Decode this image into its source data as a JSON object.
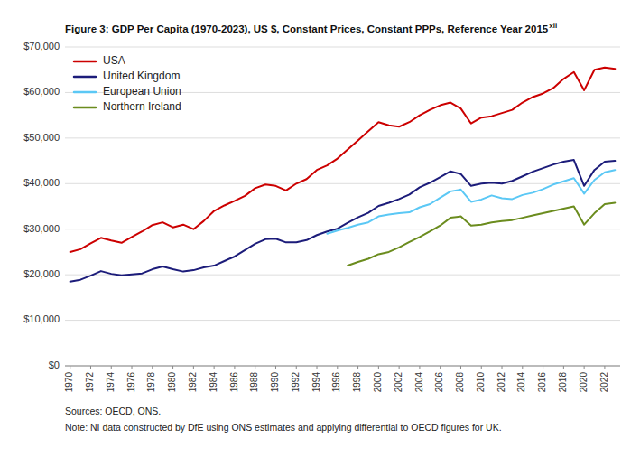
{
  "chart_data": {
    "type": "line",
    "title": "Figure 3: GDP Per Capita (1970-2023), US $, Constant Prices, Constant PPPs, Reference Year 2015",
    "annotations": [
      "xii",
      "Sources: OECD, ONS.",
      "Note: NI data constructed by DfE using ONS estimates and applying differential to OECD figures for UK."
    ],
    "x": [
      1970,
      1971,
      1972,
      1973,
      1974,
      1975,
      1976,
      1977,
      1978,
      1979,
      1980,
      1981,
      1982,
      1983,
      1984,
      1985,
      1986,
      1987,
      1988,
      1989,
      1990,
      1991,
      1992,
      1993,
      1994,
      1995,
      1996,
      1997,
      1998,
      1999,
      2000,
      2001,
      2002,
      2003,
      2004,
      2005,
      2006,
      2007,
      2008,
      2009,
      2010,
      2011,
      2012,
      2013,
      2014,
      2015,
      2016,
      2017,
      2018,
      2019,
      2020,
      2021,
      2022,
      2023
    ],
    "series": [
      {
        "name": "USA",
        "color": "#cc0000",
        "values": [
          25000,
          25600,
          26900,
          28100,
          27500,
          27000,
          28300,
          29500,
          30900,
          31500,
          30400,
          31000,
          30000,
          31800,
          34000,
          35200,
          36200,
          37300,
          39000,
          39800,
          39500,
          38500,
          40000,
          41000,
          43000,
          44000,
          45500,
          47500,
          49500,
          51500,
          53500,
          52800,
          52500,
          53500,
          55000,
          56200,
          57200,
          57800,
          56500,
          53200,
          54500,
          54800,
          55500,
          56200,
          57800,
          59000,
          59800,
          61000,
          63000,
          64500,
          60500,
          65000,
          65500,
          65200
        ]
      },
      {
        "name": "United Kingdom",
        "color": "#1c1c7a",
        "values": [
          18500,
          18900,
          19800,
          20800,
          20200,
          19900,
          20100,
          20300,
          21200,
          21800,
          21200,
          20700,
          21000,
          21600,
          22000,
          23000,
          24000,
          25400,
          26800,
          27800,
          27900,
          27100,
          27100,
          27600,
          28700,
          29500,
          30100,
          31400,
          32600,
          33600,
          35100,
          35800,
          36600,
          37600,
          39200,
          40200,
          41400,
          42700,
          42100,
          39500,
          40000,
          40200,
          40000,
          40600,
          41600,
          42600,
          43400,
          44200,
          44800,
          45200,
          39500,
          43000,
          44800,
          45000
        ]
      },
      {
        "name": "European Union",
        "color": "#5bc8f5",
        "values": [
          null,
          null,
          null,
          null,
          null,
          null,
          null,
          null,
          null,
          null,
          null,
          null,
          null,
          null,
          null,
          null,
          null,
          null,
          null,
          null,
          null,
          null,
          null,
          null,
          null,
          29000,
          29700,
          30300,
          31000,
          31500,
          32800,
          33200,
          33500,
          33700,
          34800,
          35500,
          36900,
          38300,
          38700,
          36000,
          36500,
          37400,
          36800,
          36600,
          37500,
          38000,
          38800,
          39800,
          40500,
          41200,
          37800,
          40800,
          42500,
          43000
        ]
      },
      {
        "name": "Northern Ireland",
        "color": "#6b8c1e",
        "values": [
          null,
          null,
          null,
          null,
          null,
          null,
          null,
          null,
          null,
          null,
          null,
          null,
          null,
          null,
          null,
          null,
          null,
          null,
          null,
          null,
          null,
          null,
          null,
          null,
          null,
          null,
          null,
          22000,
          22800,
          23500,
          24500,
          25000,
          26000,
          27200,
          28300,
          29500,
          30800,
          32500,
          32800,
          30800,
          31000,
          31500,
          31800,
          32000,
          32500,
          33000,
          33500,
          34000,
          34500,
          35000,
          31000,
          33500,
          35500,
          35800
        ]
      }
    ],
    "xlim": [
      1969.5,
      2023.5
    ],
    "xticks": [
      1970,
      1972,
      1974,
      1976,
      1978,
      1980,
      1982,
      1984,
      1986,
      1988,
      1990,
      1992,
      1994,
      1996,
      1998,
      2000,
      2002,
      2004,
      2006,
      2008,
      2010,
      2012,
      2014,
      2016,
      2018,
      2020,
      2022
    ],
    "ylim": [
      0,
      70000
    ],
    "yticks": [
      {
        "value": 0,
        "label": "$0"
      },
      {
        "value": 10000,
        "label": "$10,000"
      },
      {
        "value": 20000,
        "label": "$20,000"
      },
      {
        "value": 30000,
        "label": "$30,000"
      },
      {
        "value": 40000,
        "label": "$40,000"
      },
      {
        "value": 50000,
        "label": "$50,000"
      },
      {
        "value": 60000,
        "label": "$60,000"
      },
      {
        "value": 70000,
        "label": "$70,000"
      }
    ],
    "grid": true,
    "legend": "upper left"
  }
}
